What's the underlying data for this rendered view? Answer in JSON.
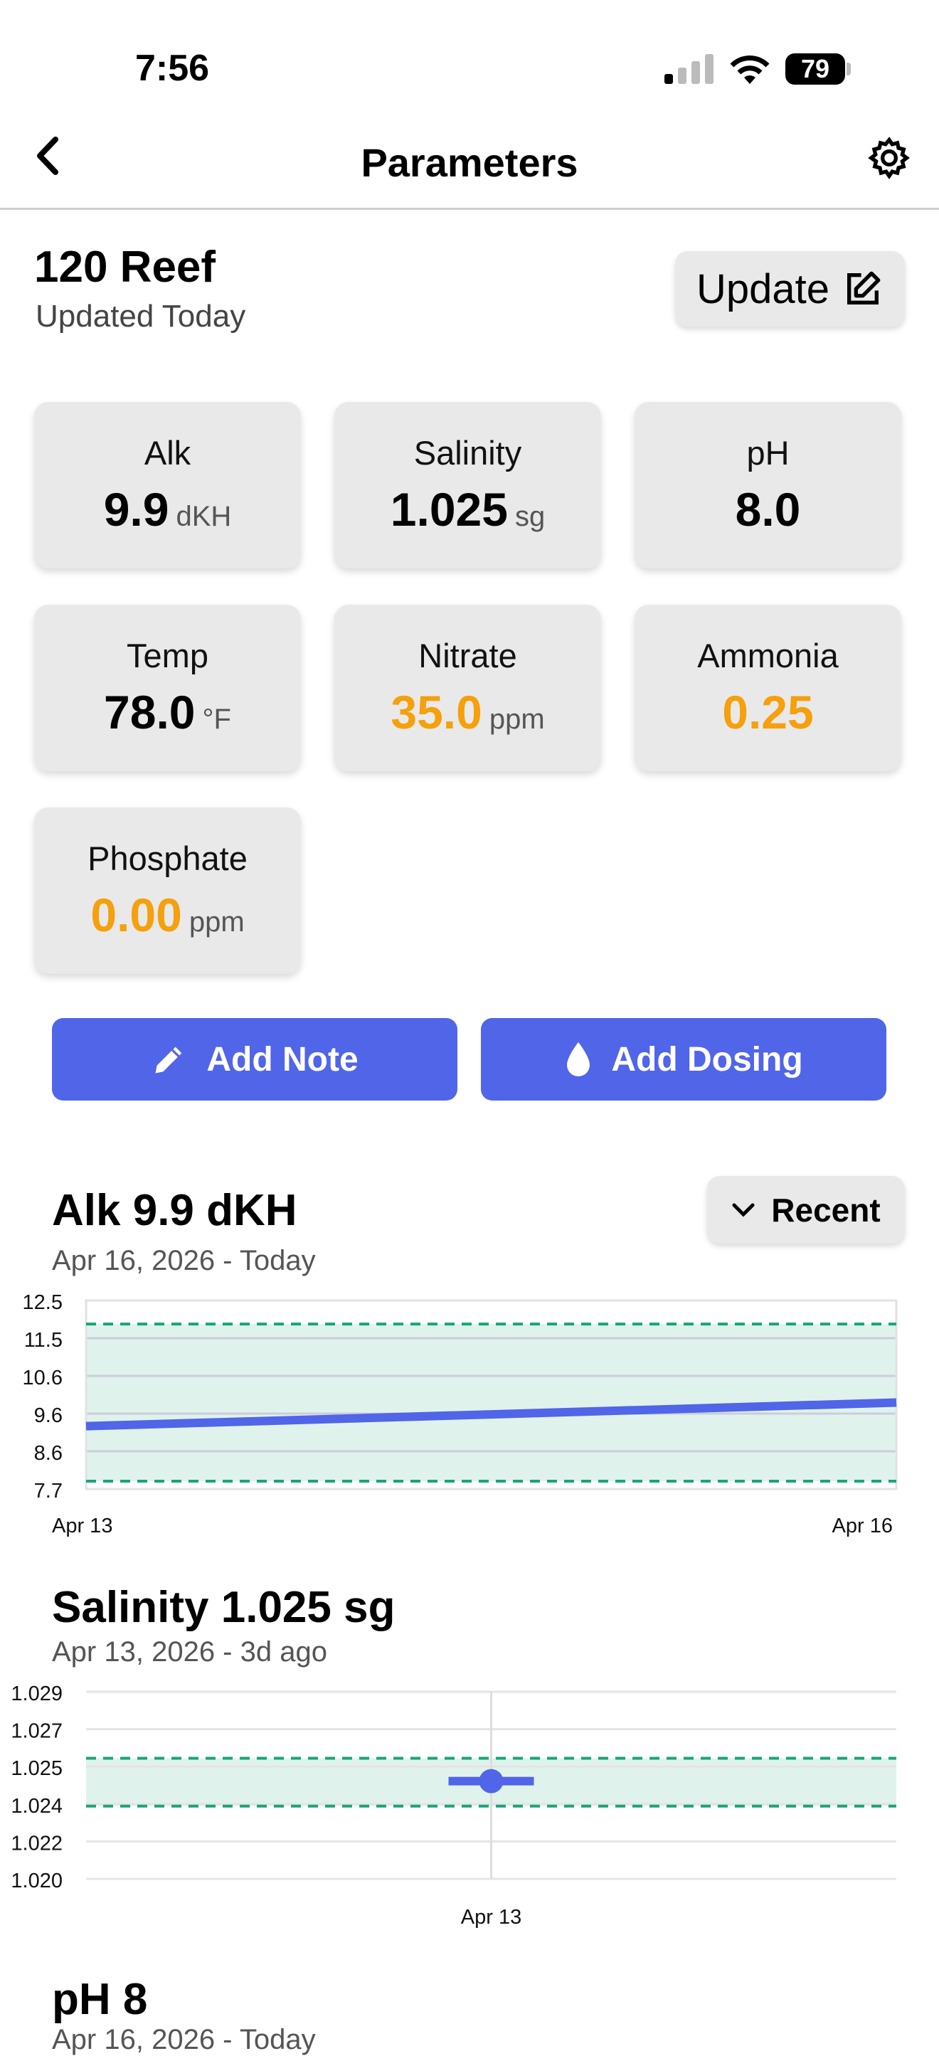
{
  "status_bar": {
    "time": "7:56",
    "battery": "79"
  },
  "nav": {
    "title": "Parameters",
    "back_icon": "chevron-left-icon",
    "settings_icon": "gear-icon"
  },
  "tank": {
    "name": "120 Reef",
    "updated": "Updated Today",
    "update_label": "Update"
  },
  "colors": {
    "accent": "#5065e8",
    "warning": "#f5a00c",
    "target": "#1aa37a"
  },
  "params": [
    {
      "label": "Alk",
      "value": "9.9",
      "unit": "dKH",
      "status": "normal"
    },
    {
      "label": "Salinity",
      "value": "1.025",
      "unit": "sg",
      "status": "normal"
    },
    {
      "label": "pH",
      "value": "8.0",
      "unit": "",
      "status": "normal"
    },
    {
      "label": "Temp",
      "value": "78.0",
      "unit": "°F",
      "status": "normal"
    },
    {
      "label": "Nitrate",
      "value": "35.0",
      "unit": "ppm",
      "status": "warning"
    },
    {
      "label": "Ammonia",
      "value": "0.25",
      "unit": "",
      "status": "warning"
    },
    {
      "label": "Phosphate",
      "value": "0.00",
      "unit": "ppm",
      "status": "warning"
    }
  ],
  "actions": {
    "add_note": "Add Note",
    "add_dosing": "Add Dosing"
  },
  "range_select": "Recent",
  "chart_data": [
    {
      "type": "line",
      "title": "Alk 9.9 dKH",
      "subtitle": "Apr 16, 2026 - Today",
      "yticks": [
        "12.5",
        "11.5",
        "10.6",
        "9.6",
        "8.6",
        "7.7"
      ],
      "ylim": [
        7.7,
        12.5
      ],
      "xticks": [
        "Apr 13",
        "Apr 16"
      ],
      "x": [
        "Apr 13",
        "Apr 16"
      ],
      "values": [
        9.3,
        9.9
      ],
      "target_range": [
        7.9,
        11.9
      ]
    },
    {
      "type": "scatter",
      "title": "Salinity 1.025 sg",
      "subtitle": "Apr 13, 2026 - 3d ago",
      "yticks": [
        "1.029",
        "1.027",
        "1.025",
        "1.024",
        "1.022",
        "1.020"
      ],
      "ylim": [
        1.02,
        1.029
      ],
      "xticks": [
        "Apr 13"
      ],
      "x": [
        "Apr 13"
      ],
      "values": [
        1.0247
      ],
      "target_range": [
        1.0235,
        1.0258
      ]
    },
    {
      "type": "line",
      "title": "pH 8",
      "subtitle": "Apr 16, 2026 - Today"
    }
  ]
}
